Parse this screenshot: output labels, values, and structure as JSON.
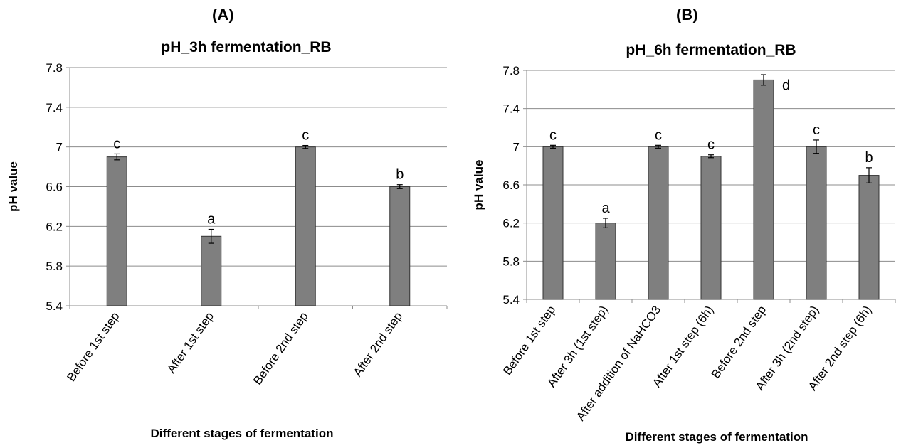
{
  "panels": {
    "a": {
      "label": "(A)"
    },
    "b": {
      "label": "(B)"
    }
  },
  "colors": {
    "bar": "#7f7f7f",
    "grid": "#8c8c8c"
  },
  "chart_data": [
    {
      "type": "bar",
      "title": "pH_3h fermentation_RB",
      "xlabel": "Different stages of fermentation",
      "ylabel": "pH value",
      "ylim": [
        5.4,
        7.8
      ],
      "yticks": [
        "5.4",
        "5.8",
        "6.2",
        "6.6",
        "7",
        "7.4",
        "7.8"
      ],
      "grid": true,
      "categories": [
        "Before 1st step",
        "After 1st step",
        "Before 2nd step",
        "After 2nd step"
      ],
      "values": [
        6.9,
        6.1,
        7.0,
        6.6
      ],
      "errors": [
        0.03,
        0.07,
        0.015,
        0.02
      ],
      "annotations": [
        "c",
        "a",
        "c",
        "b"
      ]
    },
    {
      "type": "bar",
      "title": "pH_6h fermentation_RB",
      "xlabel": "Different stages of fermentation",
      "ylabel": "pH value",
      "ylim": [
        5.4,
        7.8
      ],
      "yticks": [
        "5.4",
        "5.8",
        "6.2",
        "6.6",
        "7",
        "7.4",
        "7.8"
      ],
      "grid": true,
      "categories": [
        "Before 1st step",
        "After 3h  (1st step)",
        "After addition of NaHCO3",
        "After 1st step (6h)",
        "Before 2nd step",
        "After 3h  (2nd step)",
        "After 2nd step (6h)"
      ],
      "values": [
        7.0,
        6.2,
        7.0,
        6.9,
        7.7,
        7.0,
        6.7
      ],
      "errors": [
        0.015,
        0.05,
        0.015,
        0.015,
        0.055,
        0.07,
        0.08
      ],
      "annotations": [
        "c",
        "a",
        "c",
        "c",
        "d",
        "c",
        "b"
      ]
    }
  ]
}
